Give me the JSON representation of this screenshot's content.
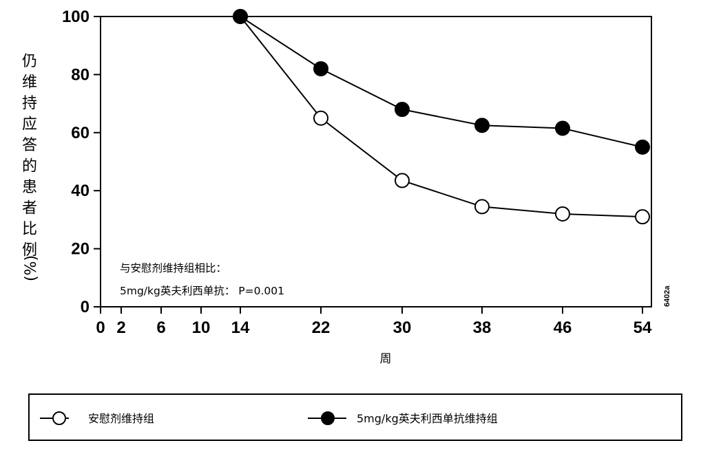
{
  "chart_data": {
    "type": "line",
    "x": [
      14,
      22,
      30,
      38,
      46,
      54
    ],
    "x_ticks": [
      "0",
      "2",
      "6",
      "10",
      "14",
      "22",
      "30",
      "38",
      "46",
      "54"
    ],
    "y_ticks": [
      "0",
      "20",
      "40",
      "60",
      "80",
      "100"
    ],
    "ylim": [
      0,
      100
    ],
    "xlabel": "周",
    "ylabel": "仍维持应答的患者比例",
    "ylabel_unit": "(%)",
    "grid": false,
    "legend_position": "bottom",
    "annotation": [
      "与安慰剂维持组相比：",
      "5mg/kg英夫利西单抗： P=0.001"
    ],
    "figure_code": "6402a",
    "series": [
      {
        "name": "安慰剂维持组",
        "marker": "open-circle",
        "color": "#000000",
        "values": [
          100,
          65,
          43.5,
          34.5,
          32,
          31
        ]
      },
      {
        "name": "5mg/kg英夫利西单抗维持组",
        "marker": "filled-circle",
        "color": "#000000",
        "values": [
          100,
          82,
          68,
          62.5,
          61.5,
          55
        ]
      }
    ]
  }
}
